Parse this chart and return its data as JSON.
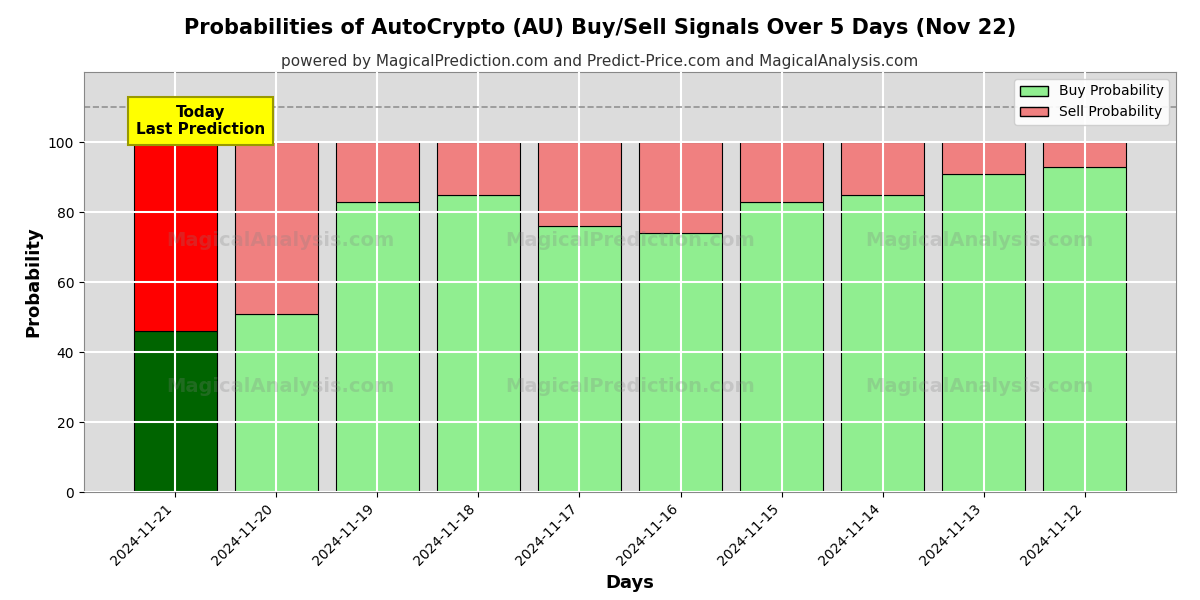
{
  "title": "Probabilities of AutoCrypto (AU) Buy/Sell Signals Over 5 Days (Nov 22)",
  "subtitle": "powered by MagicalPrediction.com and Predict-Price.com and MagicalAnalysis.com",
  "xlabel": "Days",
  "ylabel": "Probability",
  "categories": [
    "2024-11-21",
    "2024-11-20",
    "2024-11-19",
    "2024-11-18",
    "2024-11-17",
    "2024-11-16",
    "2024-11-15",
    "2024-11-14",
    "2024-11-13",
    "2024-11-12"
  ],
  "buy_values": [
    46,
    51,
    83,
    85,
    76,
    74,
    83,
    85,
    91,
    93
  ],
  "sell_values": [
    54,
    49,
    17,
    15,
    24,
    26,
    17,
    15,
    9,
    7
  ],
  "buy_colors": [
    "#006400",
    "#90EE90",
    "#90EE90",
    "#90EE90",
    "#90EE90",
    "#90EE90",
    "#90EE90",
    "#90EE90",
    "#90EE90",
    "#90EE90"
  ],
  "sell_colors": [
    "#FF0000",
    "#F08080",
    "#F08080",
    "#F08080",
    "#F08080",
    "#F08080",
    "#F08080",
    "#F08080",
    "#F08080",
    "#F08080"
  ],
  "ylim": [
    0,
    120
  ],
  "yticks": [
    0,
    20,
    40,
    60,
    80,
    100
  ],
  "dashed_line_y": 110,
  "legend_buy_color": "#90EE90",
  "legend_sell_color": "#F08080",
  "today_box_color": "#FFFF00",
  "today_label": "Today\nLast Prediction",
  "bar_edge_color": "#000000",
  "bar_linewidth": 0.8,
  "grid_color": "#FFFFFF",
  "bg_color": "#DCDCDC",
  "title_fontsize": 15,
  "subtitle_fontsize": 11,
  "axis_label_fontsize": 13,
  "tick_fontsize": 10
}
